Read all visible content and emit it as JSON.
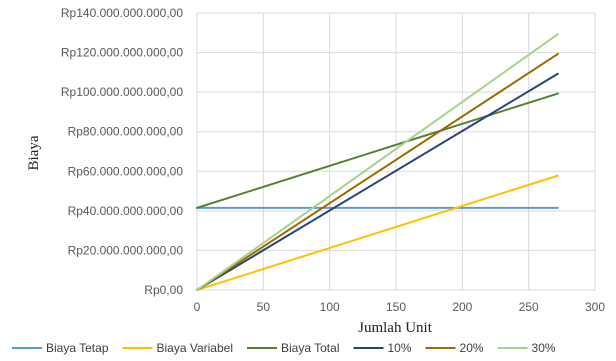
{
  "chart_data": {
    "type": "line",
    "title": "",
    "xlabel": "Jumlah Unit",
    "ylabel": "Biaya",
    "xlim": [
      0,
      300
    ],
    "ylim": [
      0,
      140000000000
    ],
    "x_ticks": [
      0,
      50,
      100,
      150,
      200,
      250,
      300
    ],
    "y_ticks": [
      0,
      20000000000,
      40000000000,
      60000000000,
      80000000000,
      100000000000,
      120000000000,
      140000000000
    ],
    "x_tick_labels": [
      "0",
      "50",
      "100",
      "150",
      "200",
      "250",
      "300"
    ],
    "y_tick_labels": [
      "Rp0,00",
      "Rp20.000.000.000,00",
      "Rp40.000.000.000,00",
      "Rp60.000.000.000,00",
      "Rp80.000.000.000,00",
      "Rp100.000.000.000,00",
      "Rp120.000.000.000,00",
      "Rp140.000.000.000,00"
    ],
    "grid": true,
    "legend_position": "bottom",
    "series": [
      {
        "name": "Biaya Tetap",
        "color": "#5b9bd5",
        "x": [
          0,
          272
        ],
        "values": [
          41500000000,
          41500000000
        ]
      },
      {
        "name": "Biaya Variabel",
        "color": "#ffc000",
        "x": [
          0,
          272
        ],
        "values": [
          0,
          57800000000
        ]
      },
      {
        "name": "Biaya Total",
        "color": "#548235",
        "x": [
          0,
          272
        ],
        "values": [
          41500000000,
          99300000000
        ]
      },
      {
        "name": "10%",
        "color": "#264478",
        "x": [
          0,
          272
        ],
        "values": [
          0,
          109300000000
        ]
      },
      {
        "name": "20%",
        "color": "#9e6900",
        "x": [
          0,
          272
        ],
        "values": [
          0,
          119300000000
        ]
      },
      {
        "name": "30%",
        "color": "#a9d18e",
        "x": [
          0,
          272
        ],
        "values": [
          0,
          129300000000
        ]
      }
    ]
  }
}
